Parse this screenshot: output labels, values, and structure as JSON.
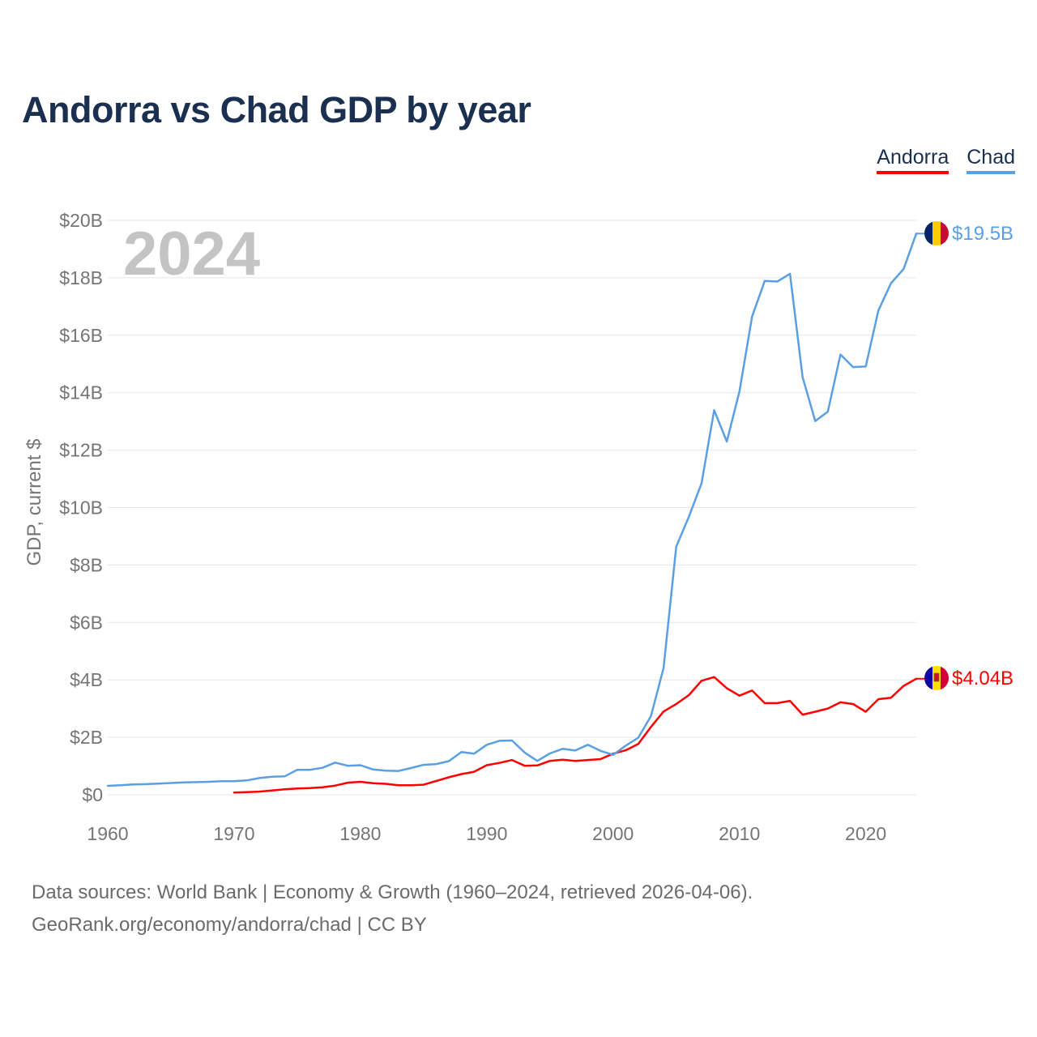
{
  "chart_data": {
    "type": "line",
    "title": "Andorra vs Chad GDP by year",
    "year_watermark": "2024",
    "ylabel": "GDP, current $",
    "xlabel": "",
    "xlim": [
      1960,
      2024
    ],
    "ylim": [
      0,
      20
    ],
    "y_unit": "billions of current US$",
    "y_ticks": [
      {
        "value": 0,
        "label": "$0"
      },
      {
        "value": 2,
        "label": "$2B"
      },
      {
        "value": 4,
        "label": "$4B"
      },
      {
        "value": 6,
        "label": "$6B"
      },
      {
        "value": 8,
        "label": "$8B"
      },
      {
        "value": 10,
        "label": "$10B"
      },
      {
        "value": 12,
        "label": "$12B"
      },
      {
        "value": 14,
        "label": "$14B"
      },
      {
        "value": 16,
        "label": "$16B"
      },
      {
        "value": 18,
        "label": "$18B"
      },
      {
        "value": 20,
        "label": "$20B"
      }
    ],
    "x_ticks": [
      {
        "value": 1960,
        "label": "1960"
      },
      {
        "value": 1970,
        "label": "1970"
      },
      {
        "value": 1980,
        "label": "1980"
      },
      {
        "value": 1990,
        "label": "1990"
      },
      {
        "value": 2000,
        "label": "2000"
      },
      {
        "value": 2010,
        "label": "2010"
      },
      {
        "value": 2020,
        "label": "2020"
      }
    ],
    "grid": true,
    "legend_position": "top-right",
    "series": [
      {
        "name": "Andorra",
        "color": "#ff0000",
        "end_label": "$4.04B",
        "flag_icon": "andorra-flag-icon",
        "start_year": 1970,
        "values": [
          0.08,
          0.09,
          0.11,
          0.15,
          0.19,
          0.22,
          0.23,
          0.26,
          0.32,
          0.42,
          0.45,
          0.4,
          0.38,
          0.33,
          0.33,
          0.35,
          0.48,
          0.61,
          0.72,
          0.8,
          1.03,
          1.11,
          1.21,
          1.01,
          1.02,
          1.18,
          1.22,
          1.18,
          1.21,
          1.24,
          1.43,
          1.55,
          1.77,
          2.36,
          2.9,
          3.16,
          3.47,
          3.97,
          4.1,
          3.71,
          3.45,
          3.63,
          3.19,
          3.19,
          3.27,
          2.79,
          2.89,
          3.0,
          3.22,
          3.16,
          2.89,
          3.33,
          3.38,
          3.79,
          4.04
        ]
      },
      {
        "name": "Chad",
        "color": "#5b9fe3",
        "end_label": "$19.5B",
        "flag_icon": "chad-flag-icon",
        "start_year": 1960,
        "values": [
          0.31,
          0.33,
          0.36,
          0.37,
          0.39,
          0.41,
          0.43,
          0.44,
          0.45,
          0.47,
          0.47,
          0.5,
          0.58,
          0.63,
          0.64,
          0.87,
          0.87,
          0.94,
          1.12,
          1.01,
          1.03,
          0.88,
          0.84,
          0.83,
          0.93,
          1.04,
          1.07,
          1.17,
          1.49,
          1.43,
          1.74,
          1.88,
          1.89,
          1.47,
          1.18,
          1.44,
          1.6,
          1.54,
          1.74,
          1.53,
          1.39,
          1.71,
          1.99,
          2.74,
          4.42,
          8.64,
          9.68,
          10.84,
          13.39,
          12.3,
          14.04,
          16.65,
          17.89,
          17.87,
          18.14,
          14.54,
          13.01,
          13.34,
          15.33,
          14.89,
          14.91,
          16.86,
          17.81,
          18.31,
          19.54
        ]
      }
    ]
  },
  "footer": {
    "sources": "Data sources: World Bank | Economy & Growth (1960–2024, retrieved 2026-04-06).",
    "credit": "GeoRank.org/economy/andorra/chad | CC BY"
  }
}
